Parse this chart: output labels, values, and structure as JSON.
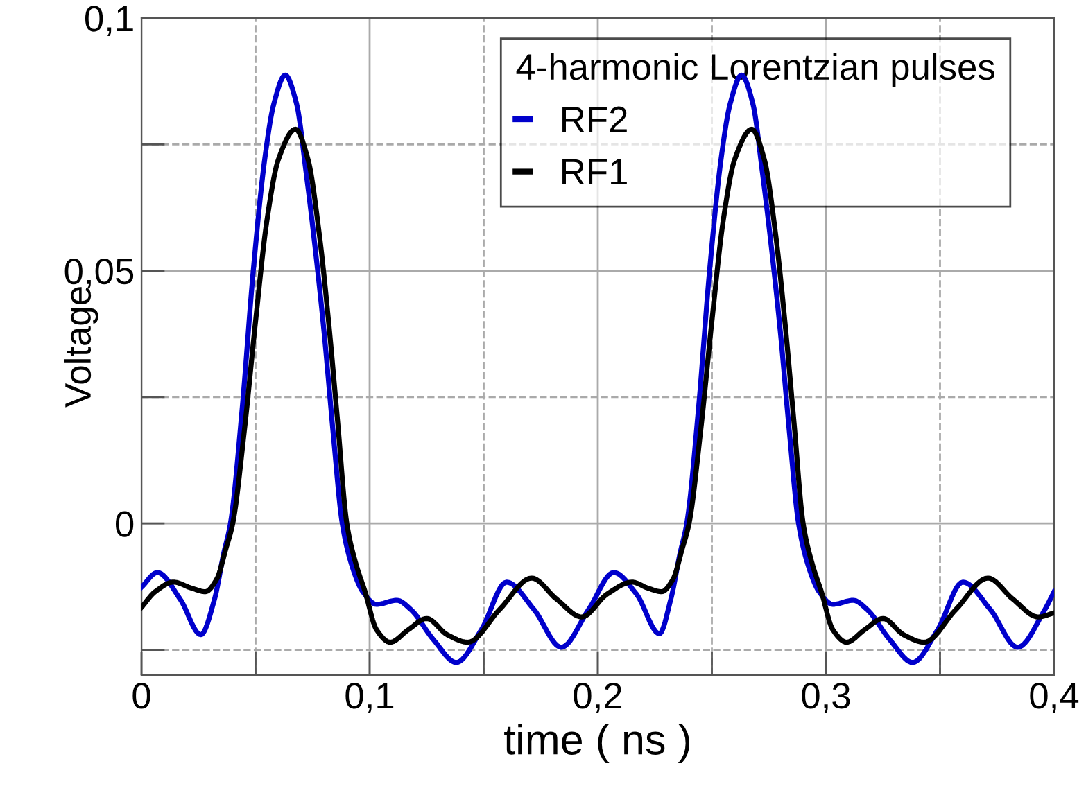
{
  "chart_data": {
    "type": "line",
    "xlabel": "time ( ns )",
    "ylabel": "Voltage",
    "legend_title": "4-harmonic Lorentzian pulses",
    "xlim": [
      0,
      0.4
    ],
    "ylim": [
      -0.03,
      0.1
    ],
    "xticks": [
      {
        "value": 0,
        "label": "0"
      },
      {
        "value": 0.05,
        "label": null
      },
      {
        "value": 0.1,
        "label": "0,1"
      },
      {
        "value": 0.15,
        "label": null
      },
      {
        "value": 0.2,
        "label": "0,2"
      },
      {
        "value": 0.25,
        "label": null
      },
      {
        "value": 0.3,
        "label": "0,3"
      },
      {
        "value": 0.35,
        "label": null
      },
      {
        "value": 0.4,
        "label": "0,4"
      }
    ],
    "yticks": [
      {
        "value": -0.025,
        "label": null
      },
      {
        "value": 0,
        "label": "0"
      },
      {
        "value": 0.025,
        "label": null
      },
      {
        "value": 0.05,
        "label": "0,05"
      },
      {
        "value": 0.075,
        "label": null
      },
      {
        "value": 0.1,
        "label": "0,1"
      }
    ],
    "grid": true,
    "legend": "top right",
    "marker": "none",
    "line_style": "solid",
    "series": [
      {
        "name": "RF2",
        "color": "#0000cc",
        "x": [
          0,
          0.007,
          0.017,
          0.026,
          0.032,
          0.036,
          0.039,
          0.044,
          0.049,
          0.054,
          0.058,
          0.063,
          0.068,
          0.072,
          0.076,
          0.08,
          0.084,
          0.088,
          0.092,
          0.097,
          0.103,
          0.112,
          0.118,
          0.128,
          0.138,
          0.149,
          0.16,
          0.172,
          0.184,
          0.196,
          0.207,
          0.217,
          0.227,
          0.232,
          0.236,
          0.239,
          0.244,
          0.249,
          0.254,
          0.258,
          0.263,
          0.268,
          0.272,
          0.276,
          0.28,
          0.284,
          0.288,
          0.292,
          0.297,
          0.303,
          0.312,
          0.318,
          0.328,
          0.338,
          0.349,
          0.36,
          0.372,
          0.384,
          0.396,
          0.4
        ],
        "values": [
          -0.0126,
          -0.0097,
          -0.015,
          -0.022,
          -0.015,
          -0.006,
          0,
          0.022,
          0.05,
          0.072,
          0.083,
          0.0887,
          0.083,
          0.07,
          0.055,
          0.038,
          0.018,
          0,
          -0.008,
          -0.0135,
          -0.016,
          -0.0152,
          -0.017,
          -0.023,
          -0.0275,
          -0.021,
          -0.0116,
          -0.017,
          -0.0245,
          -0.017,
          -0.0097,
          -0.014,
          -0.0218,
          -0.015,
          -0.006,
          0,
          0.022,
          0.05,
          0.072,
          0.083,
          0.0887,
          0.083,
          0.07,
          0.055,
          0.038,
          0.018,
          0,
          -0.008,
          -0.0135,
          -0.016,
          -0.0152,
          -0.017,
          -0.023,
          -0.0275,
          -0.021,
          -0.0116,
          -0.017,
          -0.0245,
          -0.017,
          -0.0135
        ]
      },
      {
        "name": "RF1",
        "color": "#000000",
        "x": [
          0,
          0.006,
          0.014,
          0.022,
          0.028,
          0.033,
          0.037,
          0.04,
          0.045,
          0.05,
          0.055,
          0.06,
          0.0675,
          0.073,
          0.078,
          0.082,
          0.086,
          0.09,
          0.094,
          0.098,
          0.103,
          0.109,
          0.117,
          0.125,
          0.134,
          0.143,
          0.157,
          0.171,
          0.182,
          0.193,
          0.204,
          0.215,
          0.222,
          0.228,
          0.233,
          0.237,
          0.24,
          0.245,
          0.25,
          0.255,
          0.26,
          0.2675,
          0.273,
          0.278,
          0.282,
          0.286,
          0.29,
          0.294,
          0.298,
          0.303,
          0.309,
          0.317,
          0.325,
          0.334,
          0.343,
          0.357,
          0.371,
          0.382,
          0.393,
          0.4
        ],
        "values": [
          -0.0166,
          -0.0135,
          -0.0116,
          -0.0128,
          -0.0135,
          -0.011,
          -0.005,
          0,
          0.018,
          0.04,
          0.06,
          0.072,
          0.078,
          0.072,
          0.057,
          0.04,
          0.02,
          0,
          -0.008,
          -0.0135,
          -0.021,
          -0.0235,
          -0.021,
          -0.0188,
          -0.022,
          -0.0235,
          -0.017,
          -0.0108,
          -0.015,
          -0.0185,
          -0.014,
          -0.0116,
          -0.0128,
          -0.0135,
          -0.011,
          -0.005,
          0,
          0.018,
          0.04,
          0.06,
          0.072,
          0.078,
          0.072,
          0.057,
          0.04,
          0.02,
          0,
          -0.008,
          -0.0135,
          -0.021,
          -0.0235,
          -0.021,
          -0.0188,
          -0.022,
          -0.0235,
          -0.017,
          -0.0108,
          -0.015,
          -0.0185,
          -0.0177
        ]
      }
    ]
  }
}
